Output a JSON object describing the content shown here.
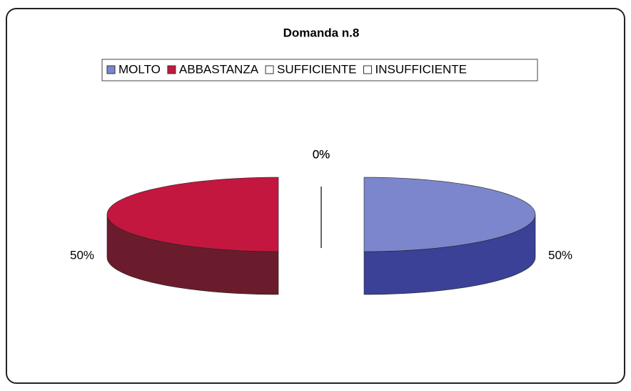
{
  "chart_data": {
    "type": "pie3d",
    "title": "Domanda n.8",
    "categories": [
      "MOLTO",
      "ABBASTANZA",
      "SUFFICIENTE",
      "INSUFFICIENTE"
    ],
    "values": [
      50,
      50,
      0,
      0
    ],
    "value_labels": [
      "50%",
      "50%",
      "0%",
      "0%"
    ],
    "colors": [
      "#7b86cc",
      "#c3173f",
      "#ffffff",
      "#ffffff"
    ],
    "side_colors": [
      "#3b4196",
      "#6b1c2c",
      "#dddddd",
      "#dddddd"
    ],
    "legend": "top"
  }
}
